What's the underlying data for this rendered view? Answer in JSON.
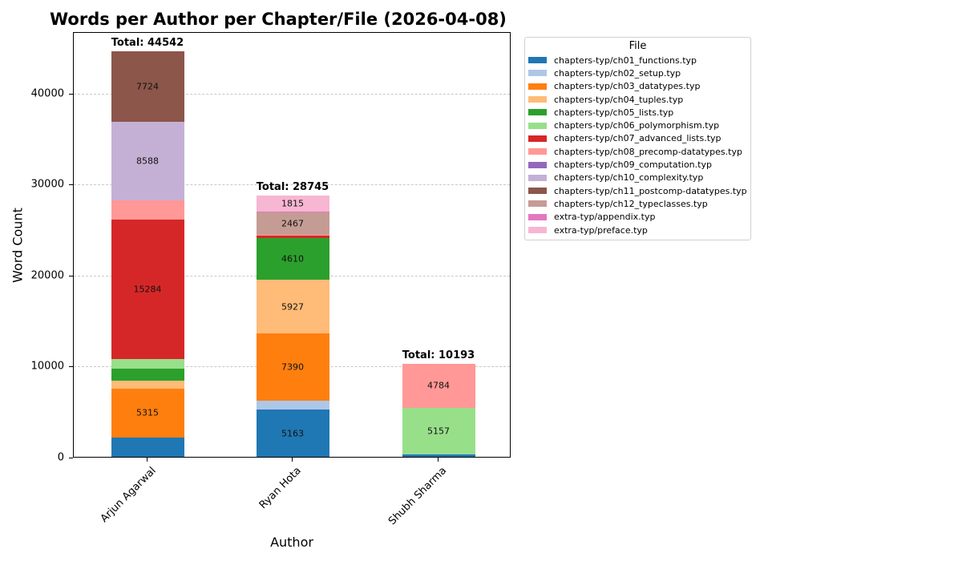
{
  "chart_data": {
    "type": "bar",
    "stacked": true,
    "title": "Words per Author per Chapter/File (2026-04-08)",
    "xlabel": "Author",
    "ylabel": "Word Count",
    "ylim": [
      0,
      46770
    ],
    "yticks": [
      0,
      10000,
      20000,
      30000,
      40000
    ],
    "grid": "y dashed",
    "legend_title": "File",
    "legend_position": "outside right top",
    "categories": [
      "Arjun Agarwal",
      "Ryan Hota",
      "Shubh Sharma"
    ],
    "totals": [
      44542,
      28745,
      10193
    ],
    "series": [
      {
        "name": "chapters-typ/ch01_functions.typ",
        "color": "#1f77b4",
        "values": [
          2150,
          5163,
          252
        ],
        "labels": [
          null,
          "5163",
          null
        ]
      },
      {
        "name": "chapters-typ/ch02_setup.typ",
        "color": "#aec7e8",
        "values": [
          0,
          1000,
          0
        ],
        "labels": [
          null,
          null,
          null
        ]
      },
      {
        "name": "chapters-typ/ch03_datatypes.typ",
        "color": "#ff7f0e",
        "values": [
          5315,
          7390,
          0
        ],
        "labels": [
          "5315",
          "7390",
          null
        ]
      },
      {
        "name": "chapters-typ/ch04_tuples.typ",
        "color": "#ffbb78",
        "values": [
          900,
          5927,
          0
        ],
        "labels": [
          null,
          "5927",
          null
        ]
      },
      {
        "name": "chapters-typ/ch05_lists.typ",
        "color": "#2ca02c",
        "values": [
          1330,
          4610,
          0
        ],
        "labels": [
          null,
          "4610",
          null
        ]
      },
      {
        "name": "chapters-typ/ch06_polymorphism.typ",
        "color": "#98df8a",
        "values": [
          1060,
          0,
          5157
        ],
        "labels": [
          null,
          null,
          "5157"
        ]
      },
      {
        "name": "chapters-typ/ch07_advanced_lists.typ",
        "color": "#d62728",
        "values": [
          15284,
          250,
          0
        ],
        "labels": [
          "15284",
          null,
          null
        ]
      },
      {
        "name": "chapters-typ/ch08_precomp-datatypes.typ",
        "color": "#ff9896",
        "values": [
          2191,
          83,
          4784
        ],
        "labels": [
          null,
          null,
          "4784"
        ]
      },
      {
        "name": "chapters-typ/ch09_computation.typ",
        "color": "#9467bd",
        "values": [
          0,
          0,
          0
        ],
        "labels": [
          null,
          null,
          null
        ]
      },
      {
        "name": "chapters-typ/ch10_complexity.typ",
        "color": "#c5b0d5",
        "values": [
          8588,
          0,
          0
        ],
        "labels": [
          "8588",
          null,
          null
        ]
      },
      {
        "name": "chapters-typ/ch11_postcomp-datatypes.typ",
        "color": "#8c564b",
        "values": [
          7724,
          0,
          0
        ],
        "labels": [
          "7724",
          null,
          null
        ]
      },
      {
        "name": "chapters-typ/ch12_typeclasses.typ",
        "color": "#c49c94",
        "values": [
          0,
          2467,
          0
        ],
        "labels": [
          null,
          "2467",
          null
        ]
      },
      {
        "name": "extra-typ/appendix.typ",
        "color": "#e377c2",
        "values": [
          0,
          40,
          0
        ],
        "labels": [
          null,
          null,
          null
        ]
      },
      {
        "name": "extra-typ/preface.typ",
        "color": "#f7b6d2",
        "values": [
          0,
          1815,
          0
        ],
        "labels": [
          null,
          "1815",
          null
        ]
      }
    ]
  },
  "header": {
    "title": "Words per Author per Chapter/File (2026-04-08)"
  },
  "axes": {
    "xlabel": "Author",
    "ylabel": "Word Count",
    "yticks": [
      "0",
      "10000",
      "20000",
      "30000",
      "40000"
    ],
    "xticks": [
      "Arjun Agarwal",
      "Ryan Hota",
      "Shubh Sharma"
    ]
  },
  "totals": {
    "arjun": "Total: 44542",
    "ryan": "Total: 28745",
    "shubh": "Total: 10193"
  },
  "legend": {
    "title": "File",
    "items": [
      {
        "label": "chapters-typ/ch01_functions.typ",
        "color": "#1f77b4"
      },
      {
        "label": "chapters-typ/ch02_setup.typ",
        "color": "#aec7e8"
      },
      {
        "label": "chapters-typ/ch03_datatypes.typ",
        "color": "#ff7f0e"
      },
      {
        "label": "chapters-typ/ch04_tuples.typ",
        "color": "#ffbb78"
      },
      {
        "label": "chapters-typ/ch05_lists.typ",
        "color": "#2ca02c"
      },
      {
        "label": "chapters-typ/ch06_polymorphism.typ",
        "color": "#98df8a"
      },
      {
        "label": "chapters-typ/ch07_advanced_lists.typ",
        "color": "#d62728"
      },
      {
        "label": "chapters-typ/ch08_precomp-datatypes.typ",
        "color": "#ff9896"
      },
      {
        "label": "chapters-typ/ch09_computation.typ",
        "color": "#9467bd"
      },
      {
        "label": "chapters-typ/ch10_complexity.typ",
        "color": "#c5b0d5"
      },
      {
        "label": "chapters-typ/ch11_postcomp-datatypes.typ",
        "color": "#8c564b"
      },
      {
        "label": "chapters-typ/ch12_typeclasses.typ",
        "color": "#c49c94"
      },
      {
        "label": "extra-typ/appendix.typ",
        "color": "#e377c2"
      },
      {
        "label": "extra-typ/preface.typ",
        "color": "#f7b6d2"
      }
    ]
  }
}
